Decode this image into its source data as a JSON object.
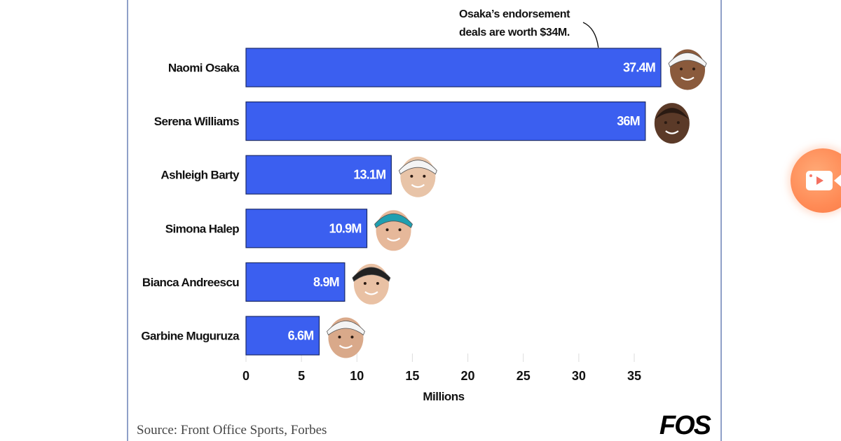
{
  "chart_data": {
    "type": "bar",
    "orientation": "horizontal",
    "categories": [
      "Naomi Osaka",
      "Serena Williams",
      "Ashleigh Barty",
      "Simona Halep",
      "Bianca Andreescu",
      "Garbine Muguruza"
    ],
    "values": [
      37.4,
      36,
      13.1,
      10.9,
      8.9,
      6.6
    ],
    "value_labels": [
      "37.4M",
      "36M",
      "13.1M",
      "10.9M",
      "8.9M",
      "6.6M"
    ],
    "xlabel": "Millions",
    "xlim": [
      0,
      37.4
    ],
    "xticks": [
      0,
      5,
      10,
      15,
      20,
      25,
      30,
      35
    ],
    "xtick_labels": [
      "0",
      "5",
      "10",
      "15",
      "20",
      "25",
      "30",
      "35"
    ],
    "grid": "vertical-ticks-only",
    "bar_color": "#3b5ff0",
    "bar_border_color": "#1a2a6a",
    "annotation": {
      "lines": [
        "Osaka’s endorsement",
        "deals are worth $34M."
      ],
      "target_category": "Naomi Osaka",
      "target_value": 31.7
    },
    "source": "Source: Front Office Sports, Forbes"
  },
  "branding": {
    "logo_text": "FOS"
  },
  "overlay": {
    "record_button_icon": "video-camera-icon",
    "record_button_color": "#ff8a55"
  }
}
